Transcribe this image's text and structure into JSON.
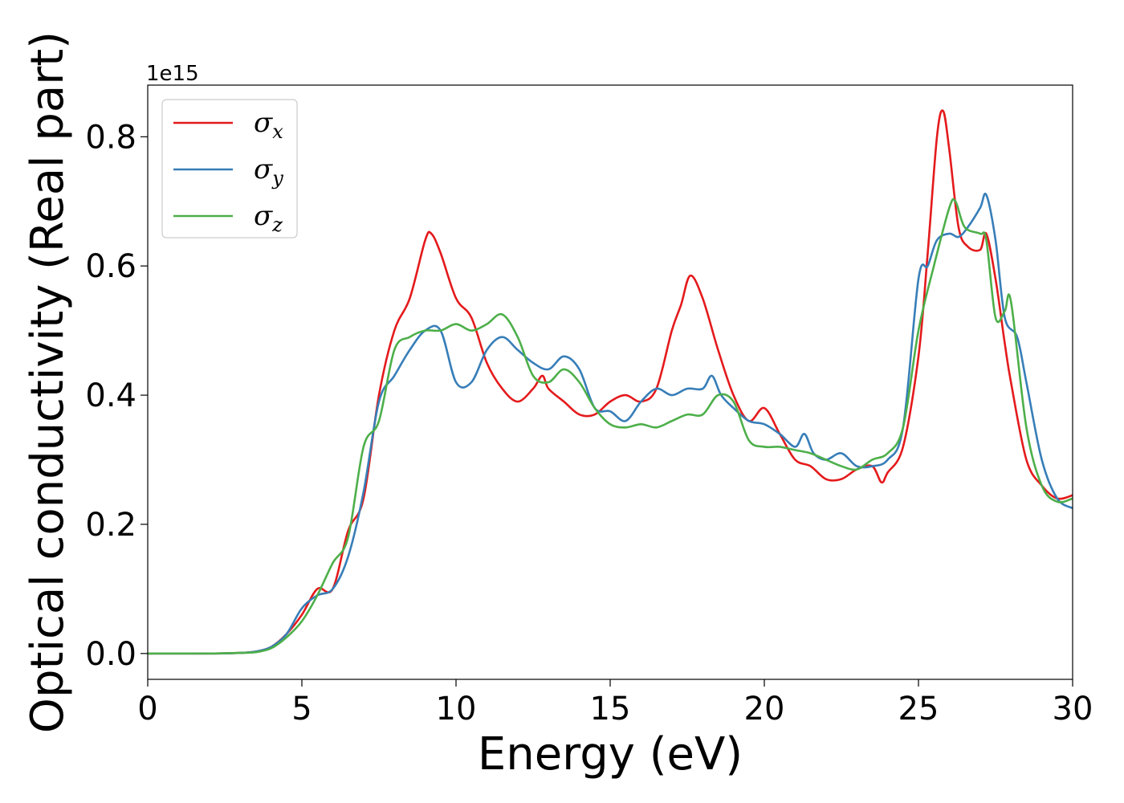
{
  "chart_data": {
    "type": "line",
    "xlabel": "Energy (eV)",
    "ylabel": "Optical conductivity (Real part)",
    "y_offset_text": "1e15",
    "y_multiplier": 1000000000000000.0,
    "xlim": [
      0,
      30
    ],
    "ylim": [
      -0.04,
      0.88
    ],
    "x_ticks": [
      0,
      5,
      10,
      15,
      20,
      25,
      30
    ],
    "x_tick_labels": [
      "0",
      "5",
      "10",
      "15",
      "20",
      "25",
      "30"
    ],
    "y_ticks": [
      0.0,
      0.2,
      0.4,
      0.6,
      0.8
    ],
    "y_tick_labels": [
      "0.0",
      "0.2",
      "0.4",
      "0.6",
      "0.8"
    ],
    "grid": false,
    "legend_position": "top-left",
    "series": [
      {
        "name": "σ",
        "subscript": "x",
        "color": "#e41a1c",
        "x": [
          0,
          1,
          2,
          3,
          3.5,
          4,
          4.5,
          5,
          5.5,
          6,
          6.5,
          7,
          7.5,
          8,
          8.5,
          9,
          9.2,
          9.5,
          10,
          10.5,
          11,
          11.5,
          12,
          12.5,
          12.8,
          13,
          13.5,
          14,
          14.5,
          15,
          15.5,
          16,
          16.5,
          17,
          17.3,
          17.6,
          18,
          18.5,
          19,
          19.5,
          20,
          20.5,
          21,
          21.5,
          22,
          22.5,
          23,
          23.5,
          23.8,
          24,
          24.5,
          25,
          25.3,
          25.6,
          25.8,
          26,
          26.3,
          26.6,
          27,
          27.2,
          27.5,
          27.8,
          28,
          28.5,
          29,
          29.5,
          30
        ],
        "y": [
          0.0,
          0.0,
          0.0,
          0.001,
          0.003,
          0.01,
          0.03,
          0.06,
          0.1,
          0.1,
          0.19,
          0.24,
          0.4,
          0.5,
          0.55,
          0.64,
          0.65,
          0.62,
          0.55,
          0.52,
          0.45,
          0.41,
          0.39,
          0.41,
          0.43,
          0.41,
          0.39,
          0.37,
          0.37,
          0.39,
          0.4,
          0.39,
          0.41,
          0.5,
          0.54,
          0.585,
          0.55,
          0.47,
          0.4,
          0.36,
          0.38,
          0.34,
          0.3,
          0.29,
          0.27,
          0.27,
          0.285,
          0.29,
          0.265,
          0.28,
          0.32,
          0.46,
          0.62,
          0.8,
          0.84,
          0.78,
          0.66,
          0.63,
          0.625,
          0.65,
          0.58,
          0.48,
          0.42,
          0.3,
          0.26,
          0.24,
          0.245
        ]
      },
      {
        "name": "σ",
        "subscript": "y",
        "color": "#377eb8",
        "x": [
          0,
          1,
          2,
          3,
          3.5,
          4,
          4.5,
          5,
          5.5,
          6,
          6.5,
          7,
          7.5,
          8,
          8.5,
          9,
          9.5,
          10,
          10.5,
          11,
          11.5,
          12,
          12.5,
          13,
          13.5,
          14,
          14.5,
          15,
          15.5,
          16,
          16.5,
          17,
          17.5,
          18,
          18.3,
          18.6,
          19,
          19.5,
          20,
          20.5,
          21,
          21.3,
          21.6,
          22,
          22.5,
          23,
          23.5,
          24,
          24.5,
          25,
          25.3,
          25.6,
          26,
          26.3,
          26.6,
          27,
          27.2,
          27.5,
          27.8,
          28.2,
          28.5,
          29,
          29.5,
          30
        ],
        "y": [
          0.0,
          0.0,
          0.0,
          0.001,
          0.003,
          0.01,
          0.03,
          0.07,
          0.09,
          0.1,
          0.15,
          0.25,
          0.39,
          0.43,
          0.47,
          0.5,
          0.5,
          0.42,
          0.42,
          0.47,
          0.49,
          0.47,
          0.45,
          0.44,
          0.46,
          0.44,
          0.38,
          0.375,
          0.36,
          0.39,
          0.41,
          0.4,
          0.41,
          0.41,
          0.43,
          0.4,
          0.38,
          0.36,
          0.355,
          0.34,
          0.32,
          0.34,
          0.31,
          0.3,
          0.31,
          0.29,
          0.29,
          0.3,
          0.35,
          0.58,
          0.6,
          0.64,
          0.65,
          0.645,
          0.66,
          0.69,
          0.71,
          0.64,
          0.52,
          0.49,
          0.42,
          0.3,
          0.24,
          0.225
        ]
      },
      {
        "name": "σ",
        "subscript": "z",
        "color": "#4daf4a",
        "x": [
          0,
          1,
          2,
          3,
          3.5,
          4,
          4.5,
          5,
          5.5,
          6,
          6.5,
          7,
          7.5,
          8,
          8.5,
          9,
          9.5,
          10,
          10.5,
          11,
          11.5,
          12,
          12.5,
          13,
          13.5,
          14,
          14.5,
          15,
          15.5,
          16,
          16.5,
          17,
          17.5,
          18,
          18.5,
          19,
          19.5,
          20,
          20.5,
          21,
          21.5,
          22,
          22.5,
          23,
          23.5,
          24,
          24.5,
          25,
          25.5,
          26,
          26.2,
          26.5,
          27,
          27.2,
          27.5,
          27.8,
          28,
          28.5,
          29,
          29.5,
          30
        ],
        "y": [
          0.0,
          0.0,
          0.0,
          0.001,
          0.002,
          0.008,
          0.025,
          0.05,
          0.09,
          0.14,
          0.18,
          0.32,
          0.36,
          0.47,
          0.49,
          0.5,
          0.5,
          0.51,
          0.5,
          0.51,
          0.525,
          0.49,
          0.43,
          0.42,
          0.44,
          0.42,
          0.38,
          0.355,
          0.35,
          0.355,
          0.35,
          0.36,
          0.37,
          0.37,
          0.4,
          0.39,
          0.33,
          0.32,
          0.32,
          0.315,
          0.31,
          0.3,
          0.29,
          0.285,
          0.3,
          0.31,
          0.35,
          0.5,
          0.6,
          0.69,
          0.7,
          0.66,
          0.65,
          0.64,
          0.52,
          0.53,
          0.545,
          0.35,
          0.26,
          0.235,
          0.24
        ]
      }
    ]
  }
}
